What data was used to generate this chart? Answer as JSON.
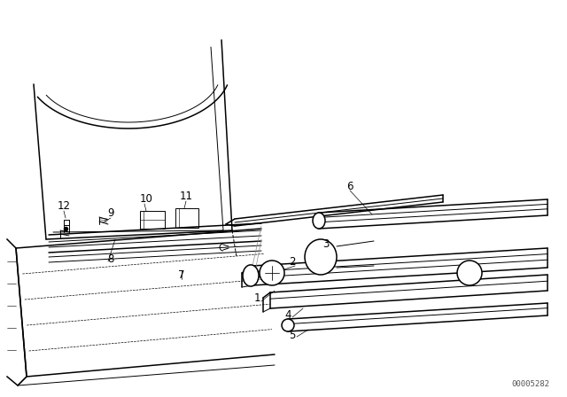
{
  "background_color": "#ffffff",
  "line_color": "#000000",
  "figure_width": 6.4,
  "figure_height": 4.48,
  "dpi": 100,
  "watermark": "00005282",
  "watermark_fontsize": 6.5
}
